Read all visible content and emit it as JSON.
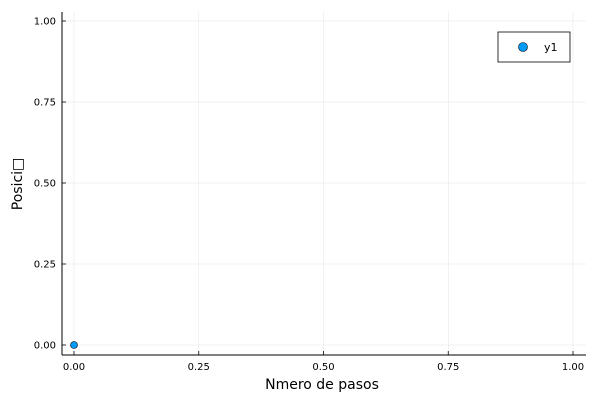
{
  "chart_data": {
    "type": "scatter",
    "title": "",
    "xlabel": "Nmero de pasos",
    "ylabel": "Posici□",
    "xlim": [
      0,
      1
    ],
    "ylim": [
      0,
      1
    ],
    "xticks": [
      0,
      0.25,
      0.5,
      0.75,
      1
    ],
    "yticks": [
      0,
      0.25,
      0.5,
      0.75,
      1
    ],
    "xtick_labels": [
      "0.00",
      "0.25",
      "0.50",
      "0.75",
      "1.00"
    ],
    "ytick_labels": [
      "0.00",
      "0.25",
      "0.50",
      "0.75",
      "1.00"
    ],
    "grid": true,
    "legend_position": "top-right",
    "series": [
      {
        "name": "y1",
        "color": "#009af9",
        "points": [
          {
            "x": 0,
            "y": 0
          }
        ]
      }
    ]
  }
}
